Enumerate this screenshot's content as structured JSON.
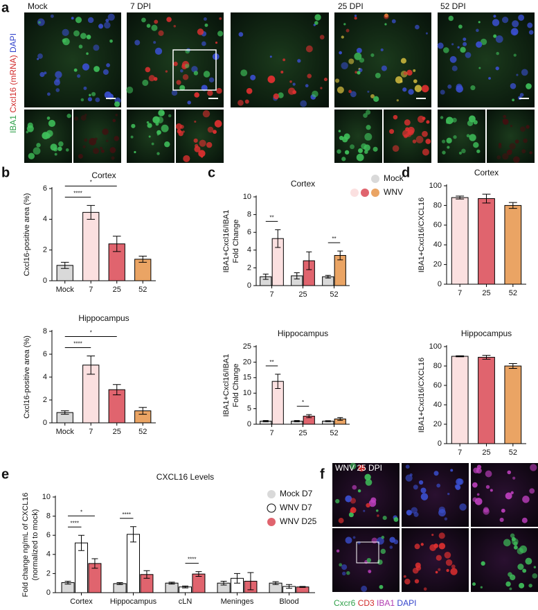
{
  "panel_labels": [
    "a",
    "b",
    "c",
    "d",
    "e",
    "f"
  ],
  "images": {
    "a": {
      "labels": [
        "Mock",
        "7 DPI",
        "25 DPI",
        "52 DPI"
      ],
      "stain": [
        "IBA1",
        "Cxcl16 (mRNA)",
        "DAPI"
      ]
    },
    "f": {
      "label": "WNV 25 DPI",
      "stain": [
        "Cxcr6",
        "CD3",
        "IBA1",
        "DAPI"
      ]
    }
  },
  "chart_data": [
    {
      "type": "bar",
      "title": "Cortex",
      "ylabel": [
        "Cxcl16-positive area (%)"
      ],
      "categories": [
        "Mock",
        "7",
        "25",
        "52"
      ],
      "values": [
        1.0,
        4.45,
        2.4,
        1.4
      ],
      "errors": [
        0.2,
        0.45,
        0.5,
        0.2
      ],
      "colors": [
        "#d9d9d9",
        "#fbe0e0",
        "#e0646e",
        "#eaa464"
      ],
      "ylim": [
        0,
        6
      ],
      "yticks": [
        0,
        2,
        4,
        6
      ],
      "annotations": [
        {
          "label": "****",
          "span": [
            [
              0,
              0
            ],
            [
              1,
              0
            ]
          ]
        },
        {
          "label": "*",
          "span": [
            [
              0,
              0
            ],
            [
              2,
              0
            ]
          ]
        }
      ]
    },
    {
      "type": "bar",
      "title": "Hippocampus",
      "ylabel": [
        "Cxcl16-positive area (%)"
      ],
      "categories": [
        "Mock",
        "7",
        "25",
        "52"
      ],
      "values": [
        0.9,
        5.05,
        2.9,
        1.05
      ],
      "errors": [
        0.15,
        0.8,
        0.45,
        0.3
      ],
      "colors": [
        "#d9d9d9",
        "#fbe0e0",
        "#e0646e",
        "#eaa464"
      ],
      "ylim": [
        0,
        8
      ],
      "yticks": [
        0,
        2,
        4,
        6,
        8
      ],
      "annotations": [
        {
          "label": "****",
          "span": [
            [
              0,
              0
            ],
            [
              1,
              0
            ]
          ]
        },
        {
          "label": "*",
          "span": [
            [
              0,
              0
            ],
            [
              2,
              0
            ]
          ]
        }
      ]
    },
    {
      "type": "bar",
      "title": "Cortex",
      "ylabel": [
        "IBA1+Cxcl16/IBA1",
        "Fold Change"
      ],
      "legend": true,
      "categories": [
        "7",
        "25",
        "52"
      ],
      "series": [
        {
          "name": "Mock",
          "color": "#d9d9d9",
          "values": [
            1.0,
            1.1,
            1.0
          ],
          "errors": [
            0.3,
            0.35,
            0.15
          ]
        },
        {
          "name": "WNV",
          "colors": [
            "#fbe0e0",
            "#e0646e",
            "#eaa464"
          ],
          "values": [
            5.3,
            2.8,
            3.4
          ],
          "errors": [
            1.0,
            1.0,
            0.5
          ]
        }
      ],
      "ylim": [
        0,
        10
      ],
      "yticks": [
        0,
        2,
        4,
        6,
        8,
        10
      ],
      "annotations": [
        {
          "label": "**",
          "span": [
            [
              0,
              0
            ],
            [
              0,
              1
            ]
          ]
        },
        {
          "label": "**",
          "span": [
            [
              2,
              0
            ],
            [
              2,
              1
            ]
          ]
        }
      ]
    },
    {
      "type": "bar",
      "title": "Hippocampus",
      "ylabel": [
        "IBA1+Cxcl16/IBA1",
        "Fold Change"
      ],
      "categories": [
        "7",
        "25",
        "52"
      ],
      "series": [
        {
          "color": "#d9d9d9",
          "values": [
            1.0,
            1.0,
            1.0
          ],
          "errors": [
            0.2,
            0.2,
            0.15
          ]
        },
        {
          "colors": [
            "#fbe0e0",
            "#e0646e",
            "#eaa464"
          ],
          "values": [
            13.8,
            2.6,
            1.7
          ],
          "errors": [
            2.3,
            0.5,
            0.45
          ]
        }
      ],
      "ylim": [
        0,
        25
      ],
      "yticks": [
        0,
        5,
        10,
        15,
        20,
        25
      ],
      "annotations": [
        {
          "label": "**",
          "span": [
            [
              0,
              0
            ],
            [
              0,
              1
            ]
          ]
        },
        {
          "label": "*",
          "span": [
            [
              1,
              0
            ],
            [
              1,
              1
            ]
          ]
        }
      ]
    },
    {
      "type": "bar",
      "title": "Cortex",
      "ylabel": [
        "IBA1+Cxcl16/CXCL16"
      ],
      "categories": [
        "7",
        "25",
        "52"
      ],
      "values": [
        88,
        87,
        80
      ],
      "errors": [
        1.5,
        4.5,
        3.0
      ],
      "colors": [
        "#fbe0e0",
        "#e0646e",
        "#eaa464"
      ],
      "ylim": [
        0,
        100
      ],
      "yticks": [
        0,
        20,
        40,
        60,
        80,
        100
      ]
    },
    {
      "type": "bar",
      "title": "Hippocampus",
      "ylabel": [
        "IBA1+Cxcl16/CXCL16"
      ],
      "categories": [
        "7",
        "25",
        "52"
      ],
      "values": [
        90,
        89,
        80
      ],
      "errors": [
        0.5,
        2.0,
        2.5
      ],
      "colors": [
        "#fbe0e0",
        "#e0646e",
        "#eaa464"
      ],
      "ylim": [
        0,
        100
      ],
      "yticks": [
        0,
        20,
        40,
        60,
        80,
        100
      ]
    },
    {
      "type": "bar",
      "title": "CXCL16 Levels",
      "ylabel": [
        "Fold change ng/mL of CXCL16",
        "(normalized to mock)"
      ],
      "legend": true,
      "categories": [
        "Cortex",
        "Hippocampus",
        "cLN",
        "Meninges",
        "Blood"
      ],
      "series": [
        {
          "name": "Mock D7",
          "color": "#d9d9d9",
          "values": [
            1.05,
            0.95,
            1.0,
            1.0,
            1.0
          ],
          "errors": [
            0.15,
            0.1,
            0.1,
            0.2,
            0.15
          ]
        },
        {
          "name": "WNV D7",
          "color": "#ffffff",
          "values": [
            5.2,
            6.1,
            0.6,
            1.5,
            0.65
          ],
          "errors": [
            0.8,
            0.8,
            0.1,
            0.5,
            0.2
          ]
        },
        {
          "name": "WNV D25",
          "color": "#e0646e",
          "values": [
            3.05,
            1.9,
            1.95,
            1.2,
            0.6
          ],
          "errors": [
            0.5,
            0.4,
            0.25,
            0.9,
            0.05
          ]
        }
      ],
      "ylim": [
        0,
        10
      ],
      "yticks": [
        0,
        2,
        4,
        6,
        8,
        10
      ],
      "annotations": [
        {
          "label": "****",
          "span": [
            [
              0,
              0
            ],
            [
              0,
              1
            ]
          ]
        },
        {
          "label": "*",
          "span": [
            [
              0,
              0
            ],
            [
              0,
              2
            ]
          ]
        },
        {
          "label": "****",
          "span": [
            [
              1,
              0
            ],
            [
              1,
              1
            ]
          ]
        },
        {
          "label": "****",
          "span": [
            [
              2,
              1
            ],
            [
              2,
              2
            ]
          ]
        }
      ]
    }
  ]
}
